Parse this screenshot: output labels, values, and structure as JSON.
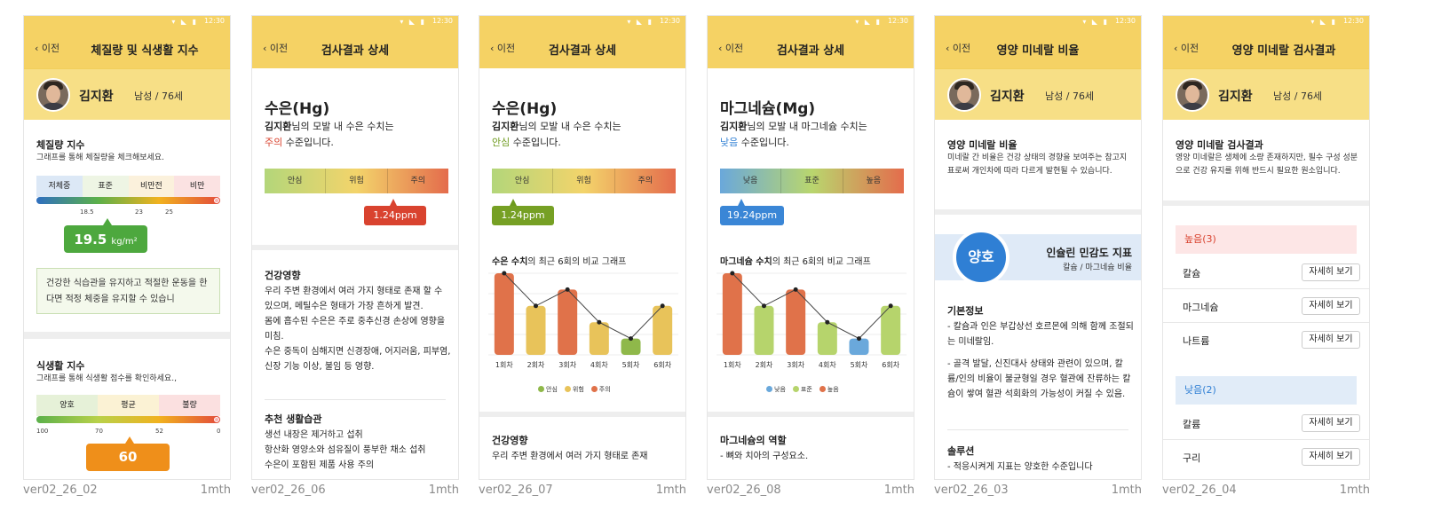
{
  "status": {
    "time": "12:30"
  },
  "profile": {
    "name": "김지환",
    "meta": "남성 / 76세"
  },
  "back_label": "이전",
  "screens": [
    {
      "title": "체질량 및 식생활 지수",
      "caption": "ver02_26_02",
      "duration": "1mth",
      "bmi": {
        "heading": "체질량 지수",
        "desc": "그래프를 통해 체질량을 체크해보세요.",
        "categories": [
          "저체중",
          "표준",
          "비만전",
          "비만"
        ],
        "ticks": [
          "18.5",
          "23",
          "25"
        ],
        "value": "19.5",
        "unit": "kg/m²",
        "level": 0.33,
        "advice": "건강한 식습관을 유지하고 적절한 운동을 한다면 적정 체중을 유지할 수 있습니"
      },
      "diet": {
        "heading": "식생활 지수",
        "desc": "그래프를 통해 식생활 점수를 확인하세요.,",
        "categories": [
          "양호",
          "평균",
          "불량"
        ],
        "ticks": [
          "100",
          "70",
          "52",
          "0"
        ],
        "value": "60"
      }
    },
    {
      "title": "검사결과 상세",
      "caption": "ver02_26_06",
      "duration": "1mth",
      "element": "수은(Hg)",
      "sentence_a": "님의 모발 내 수은 수치는",
      "status_word": "주의",
      "status_color": "#d9432f",
      "sentence_b": " 수준입니다.",
      "scale": [
        "안심",
        "위험",
        "주의"
      ],
      "value_label": "1.24ppm",
      "level": 0.78,
      "health_heading": "건강영향",
      "health_text": "우리 주변 환경에서 여러 가지 형태로 존재 할 수 있으며, 메틸수은 형태가 가장 흔하게 발견.",
      "health_text2": "몸에 흡수된 수은은 주로 중추신경 손상에 영향을 미침.",
      "health_text3": "수은 중독이 심해지면 신경장애, 어지러움, 피부염, 신장 기능 이상, 불임 등 영향.",
      "habit_heading": "추천 생활습관",
      "habit_text": "생선 내장은 제거하고 섭취",
      "habit_text2": "항산화 영양소와 섬유질이 풍부한 채소 섭취",
      "habit_text3": "수은이 포함된 제품 사용 주의"
    },
    {
      "title": "검사결과 상세",
      "caption": "ver02_26_07",
      "duration": "1mth",
      "element": "수은(Hg)",
      "sentence_a": "님의 모발 내 수은 수치는",
      "status_word": "안심",
      "status_color": "#6e9a1e",
      "sentence_b": " 수준입니다.",
      "scale": [
        "안심",
        "위험",
        "주의"
      ],
      "value_label": "1.24ppm",
      "level": 0.1,
      "graph_title_a": "수은 수치",
      "graph_title_b": "의 최근 6회의 비교 그래프",
      "health_heading": "건강영향",
      "health_text": "우리 주변 환경에서 여러 가지 형태로 존재"
    },
    {
      "title": "검사결과 상세",
      "caption": "ver02_26_08",
      "duration": "1mth",
      "element": "마그네슘(Mg)",
      "sentence_a": "님의 모발 내 마그네슘 수치는",
      "status_word": "낮음",
      "status_color": "#3a86d6",
      "sentence_b": " 수준입니다.",
      "scale": [
        "낮음",
        "표준",
        "높음"
      ],
      "value_label": "19.24ppm",
      "level": 0.1,
      "graph_title_a": "마그네슘 수치",
      "graph_title_b": "의 최근 6회의 비교 그래프",
      "role_heading": "마그네슘의 역할",
      "role_text": "- 뼈와 치아의 구성요소."
    },
    {
      "title": "영양 미네랄 비율",
      "caption": "ver02_26_03",
      "duration": "1mth",
      "ratio_heading": "영양 미네랄 비율",
      "ratio_desc": "미네랄 간 비율은 건강 상태의 경향을 보여주는 참고지표로써 개인차에 따라 다르게 발현될 수 있습니다.",
      "badge": "양호",
      "index_title": "인슐린 민감도 지표",
      "index_sub": "칼슘 / 마그네슘 비율",
      "basic_heading": "기본정보",
      "basic_text": "- 칼슘과 인은 부갑상선 호르몬에 의해 함께 조절되는 미네랄임.",
      "basic_text2": "- 골격 발달, 신진대사 상태와 관련이 있으며, 칼륨/인의 비율이 불균형일 경우 혈관에 잔류하는 칼슘이 쌓여 혈관 석회화의 가능성이 커질 수 있음.",
      "solution_heading": "솔루션",
      "solution_text": "- 적응시켜게 지표는 양호한 수준입니다"
    },
    {
      "title": "영양 미네랄 검사결과",
      "caption": "ver02_26_04",
      "duration": "1mth",
      "heading": "영양 미네랄 검사결과",
      "desc": "영양 미네랄은 생체에 소량 존재하지만, 필수 구성 성분으로 건강 유지를 위해 반드시 필요한 원소입니다.",
      "high_label": "높음(3)",
      "high_items": [
        "칼슘",
        "마그네슘",
        "나트륨"
      ],
      "low_label": "낮음(2)",
      "low_items": [
        "칼륨",
        "구리"
      ],
      "detail_label": "자세히 보기"
    }
  ],
  "chart_data": [
    {
      "type": "bar",
      "title": "수은 수치의 최근 6회의 비교 그래프",
      "categories": [
        "1회차",
        "2회차",
        "3회차",
        "4회차",
        "5회차",
        "6회차"
      ],
      "values": [
        5.0,
        3.0,
        4.0,
        2.0,
        1.0,
        3.0
      ],
      "bar_levels": [
        "주의",
        "위험",
        "주의",
        "위험",
        "안심",
        "위험"
      ],
      "legend": [
        "안심",
        "위험",
        "주의"
      ],
      "colors": {
        "안심": "#8fb84a",
        "위험": "#e8c35a",
        "주의": "#e0724a"
      }
    },
    {
      "type": "bar",
      "title": "마그네슘 수치의 최근 6회의 비교 그래프",
      "categories": [
        "1회차",
        "2회차",
        "3회차",
        "4회차",
        "5회차",
        "6회차"
      ],
      "values": [
        5.0,
        3.0,
        4.0,
        2.0,
        1.0,
        3.0
      ],
      "bar_levels": [
        "높음",
        "표준",
        "높음",
        "표준",
        "낮음",
        "표준"
      ],
      "legend": [
        "낮음",
        "표준",
        "높음"
      ],
      "colors": {
        "낮음": "#6aa8db",
        "표준": "#b6d46c",
        "높음": "#e0724a"
      }
    }
  ]
}
